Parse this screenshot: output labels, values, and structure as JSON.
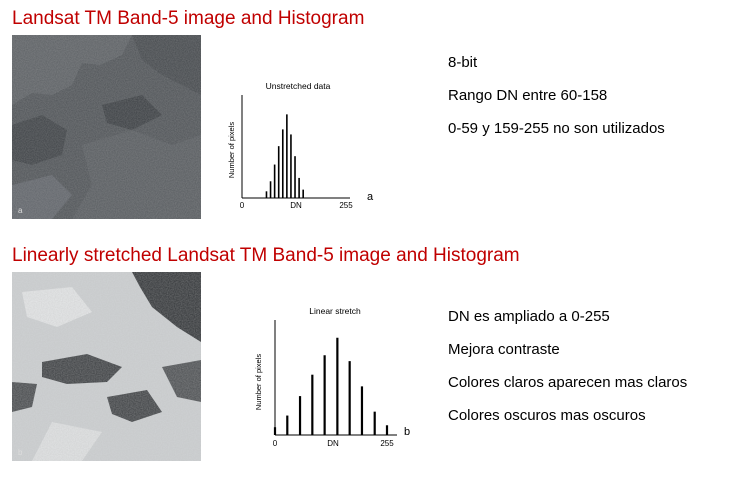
{
  "sections": [
    {
      "title": "Landsat TM Band-5 image and Histogram",
      "image_label": "a",
      "notes": [
        "8-bit",
        "Rango DN entre 60-158",
        "0-59 y 159-255 no son utilizados"
      ]
    },
    {
      "title": "Linearly stretched Landsat TM Band-5 image and Histogram",
      "image_label": "b",
      "notes": [
        "DN es ampliado a 0-255",
        "Mejora contraste",
        "Colores claros aparecen mas claros",
        "Colores oscuros mas oscuros"
      ]
    }
  ],
  "colors": {
    "title": "#c00000",
    "raw_image": "#4a4e52",
    "stretched_image": "#c9ccce"
  },
  "chart_data": [
    {
      "type": "bar",
      "title": "Unstretched data",
      "xlabel": "DN",
      "ylabel": "Number of pixels",
      "panel_label": "a",
      "xlim": [
        0,
        255
      ],
      "x_tick_labels": [
        "0",
        "DN",
        "255"
      ],
      "x": [
        60,
        70,
        80,
        90,
        100,
        110,
        120,
        130,
        140,
        150
      ],
      "values": [
        8,
        20,
        40,
        62,
        82,
        100,
        76,
        50,
        24,
        10
      ],
      "ylim": [
        0,
        110
      ]
    },
    {
      "type": "bar",
      "title": "Linear stretch",
      "xlabel": "DN",
      "ylabel": "Number of pixels",
      "panel_label": "b",
      "xlim": [
        0,
        255
      ],
      "x_tick_labels": [
        "0",
        "DN",
        "255"
      ],
      "x": [
        0,
        28,
        57,
        85,
        113,
        142,
        170,
        198,
        227,
        255
      ],
      "values": [
        8,
        20,
        40,
        62,
        82,
        100,
        76,
        50,
        24,
        10
      ],
      "ylim": [
        0,
        110
      ]
    }
  ]
}
